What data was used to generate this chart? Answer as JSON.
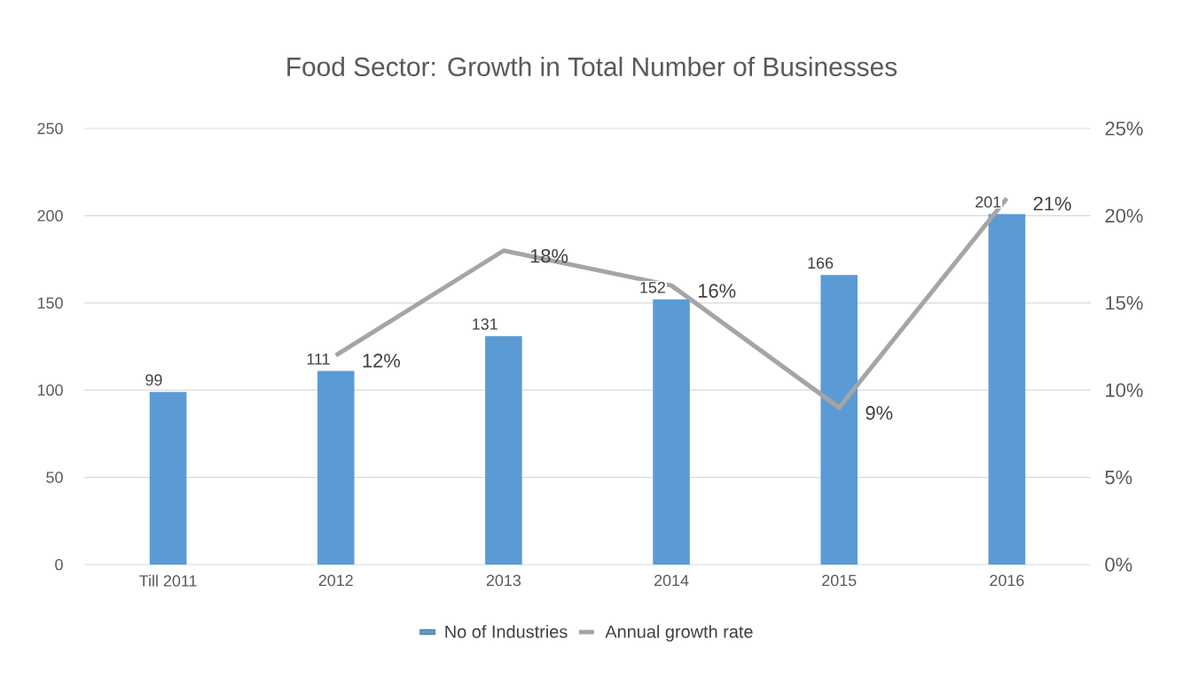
{
  "chart_data": {
    "type": "bar",
    "title": "Food Sector: Growth  in Total Number  of Businesses",
    "categories": [
      "Till 2011",
      "2012",
      "2013",
      "2014",
      "2015",
      "2016"
    ],
    "series": [
      {
        "name": "No of Industries",
        "color": "#5b9bd5",
        "values": [
          99,
          111,
          131,
          152,
          166,
          201
        ],
        "value_labels": [
          "99",
          "111",
          "131",
          "152",
          "166",
          "201"
        ]
      },
      {
        "name": "Annual growth rate",
        "type": "line",
        "axis": "y2",
        "color": "#a5a5a5",
        "values": [
          null,
          12,
          18,
          16,
          9,
          21
        ],
        "value_labels": [
          null,
          "12%",
          "18%",
          "16%",
          "9%",
          "21%"
        ]
      }
    ],
    "ylim": [
      0,
      250
    ],
    "yticks": [
      0,
      50,
      100,
      150,
      200,
      250
    ],
    "y2lim": [
      0,
      25
    ],
    "y2ticks": [
      {
        "value": 0,
        "label": "0%"
      },
      {
        "value": 5,
        "label": "5%"
      },
      {
        "value": 10,
        "label": "10%"
      },
      {
        "value": 15,
        "label": "15%"
      },
      {
        "value": 20,
        "label": "20%"
      },
      {
        "value": 25,
        "label": "25%"
      }
    ],
    "grid": "y",
    "legend": "bottom"
  }
}
